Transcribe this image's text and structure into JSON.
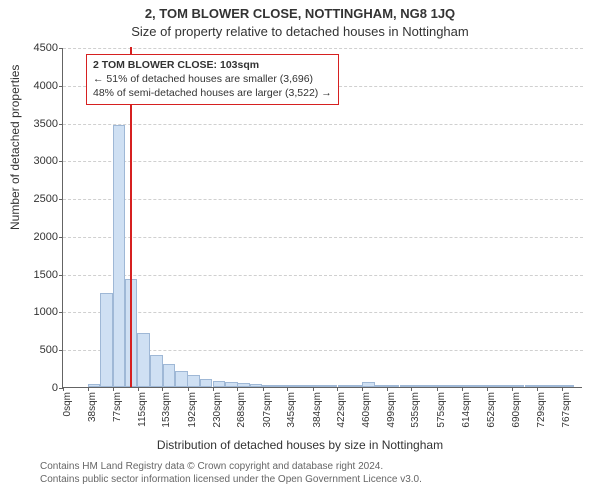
{
  "title1": "2, TOM BLOWER CLOSE, NOTTINGHAM, NG8 1JQ",
  "title2": "Size of property relative to detached houses in Nottingham",
  "ylabel": "Number of detached properties",
  "xlabel": "Distribution of detached houses by size in Nottingham",
  "chart": {
    "type": "histogram",
    "background_color": "#ffffff",
    "bar_fill": "#cfe0f3",
    "bar_border": "#9fb8d6",
    "marker_color": "#d62020",
    "grid_color": "#d0d0d0",
    "axis_color": "#646464",
    "ylim": [
      0,
      4500
    ],
    "ytick_step": 500,
    "xlim_sqm": [
      0,
      800
    ],
    "bin_width_sqm": 19.2,
    "bin_centers_sqm": [
      10,
      29,
      48,
      67,
      86,
      105,
      124,
      144,
      163,
      182,
      201,
      220,
      240,
      259,
      278,
      297,
      316,
      336,
      355,
      374,
      393,
      412,
      432,
      451,
      470,
      489,
      508,
      528,
      547,
      566,
      585,
      604,
      624,
      643,
      662,
      681,
      700,
      720,
      739,
      758,
      777
    ],
    "counts": [
      0,
      0,
      40,
      1250,
      3470,
      1430,
      710,
      420,
      300,
      210,
      160,
      110,
      80,
      70,
      50,
      40,
      30,
      25,
      20,
      18,
      15,
      12,
      10,
      8,
      60,
      5,
      4,
      3,
      2,
      2,
      2,
      2,
      2,
      2,
      2,
      2,
      1,
      1,
      1,
      1,
      1
    ],
    "xtick_positions_sqm": [
      0,
      38,
      77,
      115,
      153,
      192,
      230,
      268,
      307,
      345,
      384,
      422,
      460,
      499,
      535,
      575,
      614,
      652,
      690,
      729,
      767
    ],
    "xtick_labels": [
      "0sqm",
      "38sqm",
      "77sqm",
      "115sqm",
      "153sqm",
      "192sqm",
      "230sqm",
      "268sqm",
      "307sqm",
      "345sqm",
      "384sqm",
      "422sqm",
      "460sqm",
      "499sqm",
      "535sqm",
      "575sqm",
      "614sqm",
      "652sqm",
      "690sqm",
      "729sqm",
      "767sqm"
    ],
    "marker_sqm": 103
  },
  "annotation": {
    "line1_bold": "2 TOM BLOWER CLOSE: 103sqm",
    "line2": "← 51% of detached houses are smaller (3,696)",
    "line3": "48% of semi-detached houses are larger (3,522) →",
    "box_border": "#d62020",
    "box_bg": "#ffffff",
    "fontsize": 10.5
  },
  "footer": {
    "line1": "Contains HM Land Registry data © Crown copyright and database right 2024.",
    "line2": "Contains public sector information licensed under the Open Government Licence v3.0."
  },
  "typography": {
    "title_fontsize": 13,
    "label_fontsize": 12,
    "tick_fontsize": 11,
    "footer_fontsize": 10,
    "footer_color": "#666666"
  }
}
